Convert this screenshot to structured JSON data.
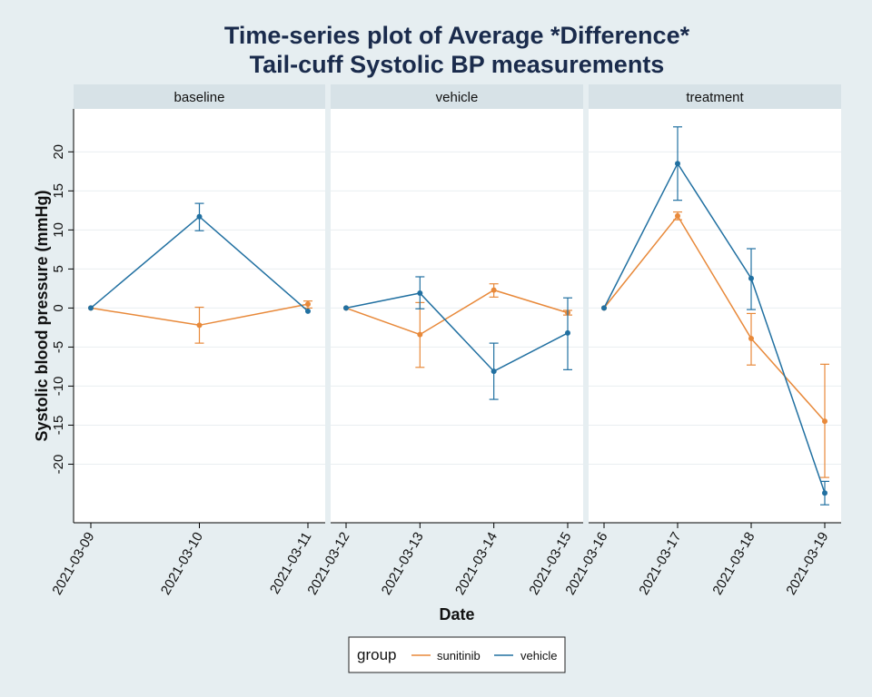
{
  "chart_data": {
    "type": "line",
    "title": [
      "Time-series plot of Average *Difference*",
      "Tail-cuff Systolic BP measurements"
    ],
    "xlabel": "Date",
    "ylabel": "Systolic blood pressure (mmHg)",
    "ylim": [
      -27.5,
      25.5
    ],
    "yticks": [
      20,
      15,
      10,
      5,
      0,
      -5,
      -10,
      -15,
      -20
    ],
    "grid": true,
    "legend": {
      "position": "bottom",
      "title": "group",
      "entries": [
        {
          "name": "sunitinib",
          "color": "#e8893a"
        },
        {
          "name": "vehicle",
          "color": "#2170a1"
        }
      ]
    },
    "panels": [
      {
        "label": "baseline",
        "x": [
          "2021-03-09",
          "2021-03-10",
          "2021-03-11"
        ],
        "series": [
          {
            "name": "sunitinib",
            "values": [
              0,
              -2.2,
              0.5
            ],
            "err_low": [
              null,
              -4.5,
              0.0
            ],
            "err_high": [
              null,
              0.1,
              0.9
            ]
          },
          {
            "name": "vehicle",
            "values": [
              0,
              11.7,
              -0.4
            ],
            "err_low": [
              null,
              9.9,
              null
            ],
            "err_high": [
              null,
              13.4,
              null
            ]
          }
        ]
      },
      {
        "label": "vehicle",
        "x": [
          "2021-03-12",
          "2021-03-13",
          "2021-03-14",
          "2021-03-15"
        ],
        "series": [
          {
            "name": "sunitinib",
            "values": [
              0,
              -3.4,
              2.3,
              -0.6
            ],
            "err_low": [
              null,
              -7.6,
              1.4,
              -0.9
            ],
            "err_high": [
              null,
              0.7,
              3.1,
              -0.3
            ]
          },
          {
            "name": "vehicle",
            "values": [
              0,
              1.9,
              -8.1,
              -3.2
            ],
            "err_low": [
              null,
              -0.1,
              -11.7,
              -7.9
            ],
            "err_high": [
              null,
              4.0,
              -4.5,
              1.3
            ]
          }
        ]
      },
      {
        "label": "treatment",
        "x": [
          "2021-03-16",
          "2021-03-17",
          "2021-03-18",
          "2021-03-19"
        ],
        "series": [
          {
            "name": "sunitinib",
            "values": [
              0,
              11.8,
              -3.9,
              -14.5
            ],
            "err_low": [
              null,
              11.3,
              -7.3,
              -21.7
            ],
            "err_high": [
              null,
              12.3,
              -0.7,
              -7.2
            ]
          },
          {
            "name": "vehicle",
            "values": [
              0,
              18.5,
              3.8,
              -23.7
            ],
            "err_low": [
              null,
              13.8,
              -0.2,
              -25.2
            ],
            "err_high": [
              null,
              23.2,
              7.6,
              -22.2
            ]
          }
        ]
      }
    ]
  }
}
